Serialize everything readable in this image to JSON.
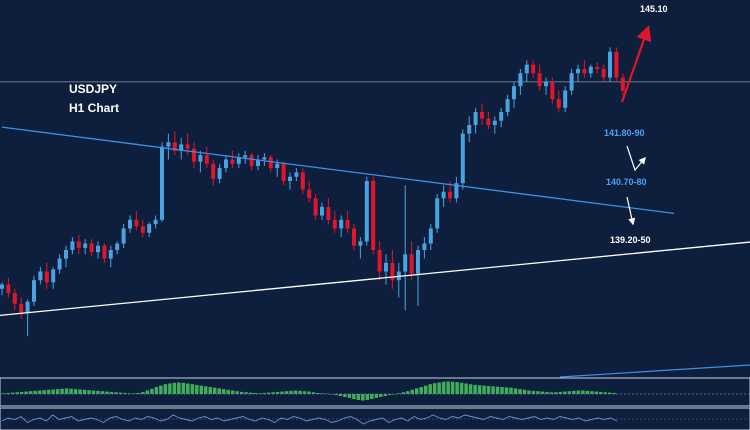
{
  "chart_data": {
    "type": "candlestick",
    "symbol": "USDJPY",
    "timeframe": "H1 Chart",
    "colors": {
      "background": "#0e1f3d",
      "bull": "#4aa3e0",
      "bear": "#e0162b",
      "trendline_upper": "#3f8fe6",
      "trendline_lower": "#ffffff",
      "target_arrow": "#e0162b",
      "scenario_arrow": "#ffffff",
      "level_label_blue": "#4aa3f5",
      "level_label_white": "#ffffff",
      "histogram": "#3fae5a"
    },
    "levels": [
      {
        "label": "145.10",
        "color": "#ffffff",
        "price": 145.1
      },
      {
        "label": "141.80-90",
        "color": "#4aa3f5",
        "price": 141.85
      },
      {
        "label": "140.70-80",
        "color": "#4aa3f5",
        "price": 140.75
      },
      {
        "label": "139.20-50",
        "color": "#ffffff",
        "price": 139.35
      }
    ],
    "ylim": [
      136.6,
      145.3
    ],
    "horizontal_line_price": 143.4,
    "trendlines": [
      {
        "name": "descending resistance",
        "points": [
          [
            0,
            142.35
          ],
          [
            105,
            140.35
          ]
        ]
      },
      {
        "name": "ascending support",
        "points": [
          [
            -6,
            137.9
          ],
          [
            118,
            139.7
          ]
        ]
      }
    ],
    "candles": [
      [
        138.6,
        138.75,
        138.45,
        138.7
      ],
      [
        138.7,
        138.85,
        138.4,
        138.5
      ],
      [
        138.5,
        138.6,
        138.1,
        138.25
      ],
      [
        138.25,
        138.4,
        137.9,
        138.05
      ],
      [
        138.05,
        138.35,
        137.5,
        138.3
      ],
      [
        138.3,
        138.9,
        138.2,
        138.8
      ],
      [
        138.8,
        139.1,
        138.7,
        139.0
      ],
      [
        139.0,
        139.2,
        138.6,
        138.75
      ],
      [
        138.75,
        139.1,
        138.6,
        139.05
      ],
      [
        139.05,
        139.4,
        138.95,
        139.3
      ],
      [
        139.3,
        139.6,
        139.1,
        139.5
      ],
      [
        139.5,
        139.8,
        139.4,
        139.7
      ],
      [
        139.7,
        139.85,
        139.4,
        139.55
      ],
      [
        139.55,
        139.75,
        139.4,
        139.65
      ],
      [
        139.65,
        139.75,
        139.35,
        139.45
      ],
      [
        139.45,
        139.7,
        139.3,
        139.6
      ],
      [
        139.6,
        139.65,
        139.2,
        139.3
      ],
      [
        139.3,
        139.6,
        139.1,
        139.5
      ],
      [
        139.5,
        139.7,
        139.4,
        139.65
      ],
      [
        139.65,
        140.1,
        139.55,
        140.0
      ],
      [
        140.0,
        140.3,
        139.9,
        140.2
      ],
      [
        140.2,
        140.4,
        139.95,
        140.05
      ],
      [
        140.05,
        140.2,
        139.8,
        139.9
      ],
      [
        139.9,
        140.15,
        139.8,
        140.1
      ],
      [
        140.1,
        140.3,
        140.0,
        140.2
      ],
      [
        140.2,
        142.0,
        140.15,
        141.9
      ],
      [
        141.9,
        142.2,
        141.6,
        142.0
      ],
      [
        142.0,
        142.25,
        141.7,
        141.8
      ],
      [
        141.8,
        142.1,
        141.6,
        141.95
      ],
      [
        141.95,
        142.2,
        141.7,
        141.85
      ],
      [
        141.85,
        142.0,
        141.4,
        141.55
      ],
      [
        141.55,
        141.8,
        141.3,
        141.7
      ],
      [
        141.7,
        141.9,
        141.4,
        141.5
      ],
      [
        141.5,
        141.6,
        141.0,
        141.15
      ],
      [
        141.15,
        141.5,
        141.05,
        141.4
      ],
      [
        141.4,
        141.7,
        141.3,
        141.6
      ],
      [
        141.6,
        141.8,
        141.4,
        141.5
      ],
      [
        141.5,
        141.75,
        141.4,
        141.65
      ],
      [
        141.65,
        141.8,
        141.5,
        141.7
      ],
      [
        141.7,
        141.75,
        141.35,
        141.45
      ],
      [
        141.45,
        141.7,
        141.35,
        141.6
      ],
      [
        141.6,
        141.75,
        141.45,
        141.65
      ],
      [
        141.65,
        141.7,
        141.3,
        141.4
      ],
      [
        141.4,
        141.6,
        141.2,
        141.5
      ],
      [
        141.5,
        141.55,
        141.0,
        141.1
      ],
      [
        141.1,
        141.3,
        140.9,
        141.2
      ],
      [
        141.2,
        141.4,
        141.1,
        141.3
      ],
      [
        141.3,
        141.4,
        140.8,
        140.9
      ],
      [
        140.9,
        141.1,
        140.6,
        140.7
      ],
      [
        140.7,
        140.8,
        140.2,
        140.3
      ],
      [
        140.3,
        140.6,
        140.2,
        140.5
      ],
      [
        140.5,
        140.7,
        140.1,
        140.2
      ],
      [
        140.2,
        140.4,
        139.9,
        140.0
      ],
      [
        140.0,
        140.3,
        139.8,
        140.2
      ],
      [
        140.2,
        140.4,
        139.9,
        140.0
      ],
      [
        140.0,
        140.1,
        139.5,
        139.6
      ],
      [
        139.6,
        139.8,
        139.3,
        139.7
      ],
      [
        139.7,
        141.2,
        139.6,
        141.1
      ],
      [
        141.1,
        141.2,
        139.4,
        139.5
      ],
      [
        139.5,
        139.7,
        138.8,
        139.0
      ],
      [
        139.0,
        139.4,
        138.7,
        139.2
      ],
      [
        139.2,
        139.5,
        138.6,
        138.8
      ],
      [
        138.8,
        139.2,
        138.4,
        139.0
      ],
      [
        139.0,
        141.0,
        138.1,
        139.4
      ],
      [
        139.4,
        139.7,
        138.8,
        138.95
      ],
      [
        138.95,
        139.6,
        138.2,
        139.5
      ],
      [
        139.5,
        139.8,
        139.3,
        139.65
      ],
      [
        139.65,
        140.1,
        139.5,
        140.0
      ],
      [
        140.0,
        140.8,
        139.9,
        140.7
      ],
      [
        140.7,
        141.0,
        140.5,
        140.85
      ],
      [
        140.85,
        141.1,
        140.6,
        140.7
      ],
      [
        140.7,
        141.2,
        140.6,
        141.05
      ],
      [
        141.05,
        142.3,
        140.9,
        142.2
      ],
      [
        142.2,
        142.6,
        142.0,
        142.4
      ],
      [
        142.4,
        142.8,
        142.2,
        142.7
      ],
      [
        142.7,
        142.9,
        142.4,
        142.55
      ],
      [
        142.55,
        142.7,
        142.3,
        142.4
      ],
      [
        142.4,
        142.6,
        142.2,
        142.5
      ],
      [
        142.5,
        142.8,
        142.35,
        142.7
      ],
      [
        142.7,
        143.1,
        142.6,
        143.0
      ],
      [
        143.0,
        143.4,
        142.8,
        143.3
      ],
      [
        143.3,
        143.7,
        143.1,
        143.6
      ],
      [
        143.6,
        143.9,
        143.4,
        143.8
      ],
      [
        143.8,
        143.9,
        143.5,
        143.6
      ],
      [
        143.6,
        143.8,
        143.2,
        143.3
      ],
      [
        143.3,
        143.5,
        143.1,
        143.4
      ],
      [
        143.4,
        143.5,
        142.9,
        143.0
      ],
      [
        143.0,
        143.2,
        142.7,
        142.8
      ],
      [
        142.8,
        143.3,
        142.7,
        143.2
      ],
      [
        143.2,
        143.7,
        143.1,
        143.6
      ],
      [
        143.6,
        143.8,
        143.4,
        143.7
      ],
      [
        143.7,
        143.9,
        143.5,
        143.6
      ],
      [
        143.6,
        143.8,
        143.5,
        143.75
      ],
      [
        143.75,
        143.85,
        143.6,
        143.7
      ],
      [
        143.7,
        143.8,
        143.4,
        143.5
      ],
      [
        143.5,
        144.2,
        143.4,
        144.1
      ],
      [
        144.1,
        144.2,
        143.4,
        143.5
      ],
      [
        143.5,
        143.6,
        143.1,
        143.2
      ]
    ],
    "indicator_1": {
      "type": "histogram",
      "values": [
        0.2,
        0.3,
        0.4,
        0.5,
        0.6,
        0.7,
        0.8,
        0.9,
        1.0,
        1.1,
        1.2,
        1.3,
        1.4,
        1.5,
        1.6,
        1.5,
        1.4,
        1.3,
        1.2,
        1.1,
        1.0,
        0.9,
        0.8,
        0.7,
        0.6,
        0.5,
        0.4,
        0.3,
        0.2,
        0.2,
        0.3,
        0.6,
        1.0,
        1.5,
        2.0,
        2.4,
        2.8,
        3.0,
        3.2,
        3.3,
        3.2,
        3.0,
        2.8,
        2.6,
        2.4,
        2.2,
        2.0,
        1.8,
        1.6,
        1.4,
        1.2,
        1.0,
        0.8,
        0.6,
        0.5,
        0.4,
        0.3,
        0.2,
        0.3,
        0.4,
        0.5,
        0.6,
        0.7,
        0.8,
        0.9,
        1.0,
        0.9,
        0.8,
        0.7,
        0.5,
        0.3,
        0.2,
        0.1,
        0.0,
        -0.2,
        -0.4,
        -0.6,
        -0.8,
        -1.0,
        -1.2,
        -1.3,
        -1.2,
        -1.0,
        -0.8,
        -0.6,
        -0.4,
        -0.2,
        0.0,
        0.2,
        0.5,
        0.8,
        1.2,
        1.6,
        2.0,
        2.4,
        2.8,
        3.1,
        3.3,
        3.5,
        3.6,
        3.5,
        3.4,
        3.2,
        3.0,
        2.8,
        2.6,
        2.5,
        2.4,
        2.3,
        2.2,
        2.1,
        2.0,
        1.9,
        1.8,
        1.6,
        1.4,
        1.2,
        1.0,
        0.9,
        0.8,
        0.7,
        0.6,
        0.5,
        0.5,
        0.6,
        0.7,
        0.8,
        0.9,
        1.0,
        1.0,
        0.9,
        0.8,
        0.7,
        0.6,
        0.5,
        0.4,
        0.3
      ],
      "ylim": [
        -2,
        4
      ]
    },
    "indicator_2": {
      "type": "line",
      "values": [
        0.4,
        0.6,
        0.5,
        0.7,
        0.3,
        0.5,
        0.6,
        0.4,
        0.8,
        0.5,
        0.6,
        0.7,
        0.4,
        0.5,
        0.6,
        0.5,
        0.3,
        0.6,
        0.7,
        0.5,
        0.4,
        0.6,
        0.5,
        0.7,
        0.6,
        0.4,
        0.5,
        0.8,
        0.6,
        0.5,
        0.4,
        0.6,
        0.7,
        0.5,
        0.6,
        0.4,
        0.5,
        0.6,
        0.7,
        0.5,
        0.4,
        0.6,
        0.5,
        0.3,
        0.6,
        0.5,
        0.7,
        0.6,
        0.4,
        0.5,
        0.6,
        0.5,
        0.3,
        0.4,
        0.6,
        0.7,
        0.5,
        0.2,
        0.4,
        0.5,
        0.6,
        0.3,
        0.5,
        0.6,
        0.4,
        0.7,
        0.5,
        0.6,
        0.8,
        0.6,
        0.5,
        0.7,
        0.6,
        0.8,
        0.7,
        0.6,
        0.5,
        0.7,
        0.6,
        0.5,
        0.7,
        0.6,
        0.5,
        0.6,
        0.7,
        0.5,
        0.6,
        0.5,
        0.7,
        0.6,
        0.5,
        0.6,
        0.4,
        0.5,
        0.6,
        0.5,
        0.6,
        0.4
      ],
      "ylim": [
        0,
        1
      ]
    }
  }
}
